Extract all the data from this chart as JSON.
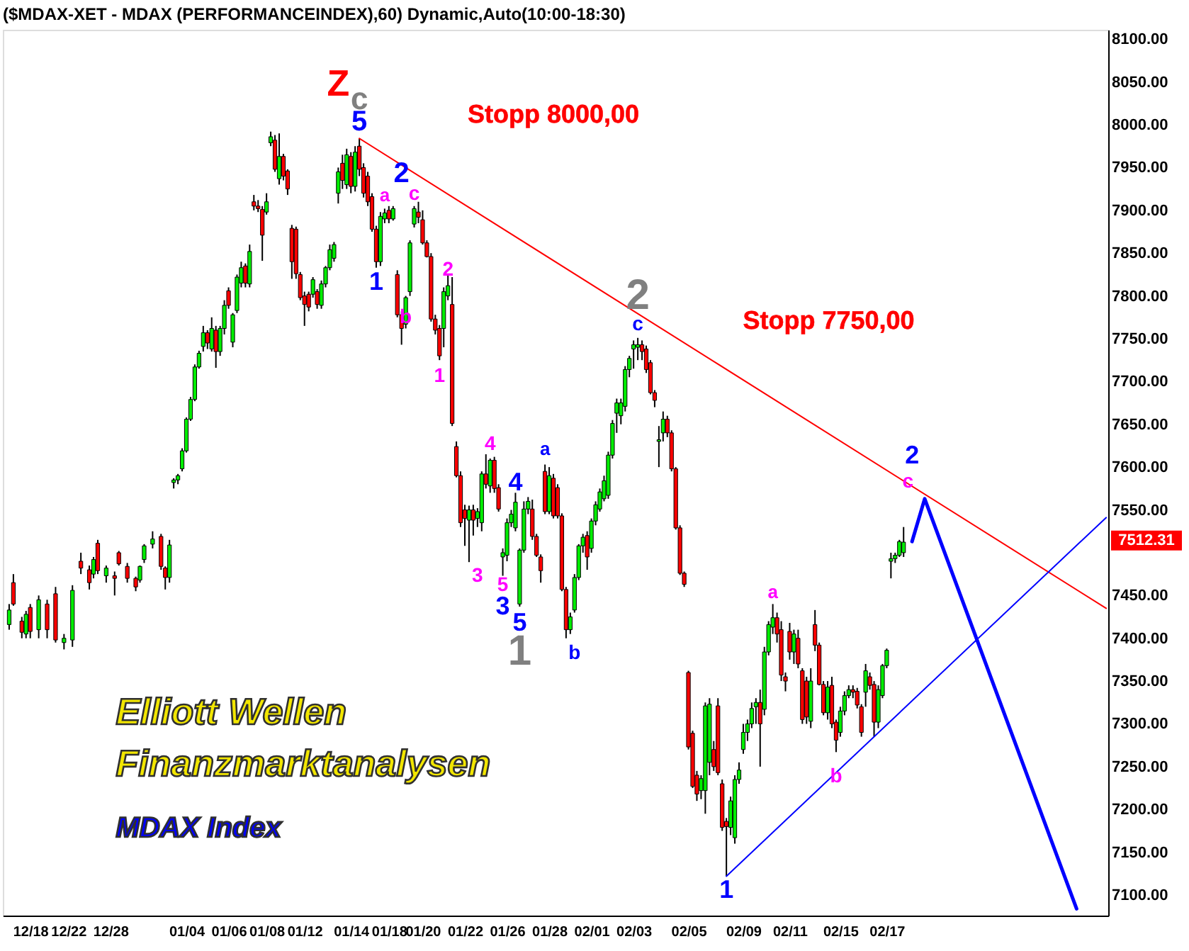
{
  "chart_data": {
    "type": "candlestick",
    "title": "($MDAX-XET - MDAX (PERFORMANCEINDEX),60) Dynamic,Auto(10:00-18:30)",
    "categories": [
      null,
      null,
      null,
      null,
      null,
      null,
      "12/18",
      null,
      null,
      null,
      null,
      null,
      null,
      null,
      null,
      "12/22",
      null,
      null,
      null,
      null,
      null,
      null,
      null,
      null,
      null,
      "12/28",
      null,
      null,
      null,
      null,
      null,
      null,
      null,
      null,
      null,
      null,
      null,
      null,
      null,
      null,
      null,
      null,
      null,
      "01/04",
      null,
      null,
      null,
      null,
      null,
      null,
      null,
      null,
      null,
      "01/06",
      null,
      null,
      null,
      null,
      null,
      null,
      null,
      null,
      "01/08",
      null,
      null,
      null,
      null,
      null,
      null,
      null,
      null,
      "01/12",
      null,
      null,
      null,
      null,
      null,
      null,
      null,
      null,
      null,
      null,
      "01/14",
      null,
      null,
      null,
      null,
      null,
      null,
      null,
      null,
      "01/18",
      null,
      null,
      null,
      null,
      null,
      null,
      null,
      "01/20",
      null,
      null,
      null,
      null,
      null,
      null,
      null,
      null,
      null,
      "01/22",
      null,
      null,
      null,
      null,
      null,
      null,
      null,
      null,
      null,
      "01/26",
      null,
      null,
      null,
      null,
      null,
      null,
      null,
      null,
      null,
      "01/28",
      null,
      null,
      null,
      null,
      null,
      null,
      null,
      null,
      null,
      "02/01",
      null,
      null,
      null,
      null,
      null,
      null,
      null,
      null,
      null,
      "02/03",
      null,
      null,
      null,
      null,
      null,
      null,
      null,
      null,
      null,
      null,
      null,
      null,
      "02/05",
      null,
      null,
      null,
      null,
      null,
      null,
      null,
      null,
      null,
      null,
      null,
      null,
      "02/09",
      null,
      null,
      null,
      null,
      null,
      null,
      null,
      null,
      null,
      null,
      "02/11",
      null,
      null,
      null,
      null,
      null,
      null,
      null,
      null,
      null,
      null,
      null,
      "02/15",
      null,
      null,
      null,
      null,
      null,
      null,
      null,
      null,
      null,
      null,
      "02/17",
      null,
      null,
      null,
      null,
      null,
      null,
      null,
      null,
      null,
      null,
      null,
      null,
      null,
      null,
      null,
      null,
      null,
      null,
      null,
      null,
      null,
      null,
      null,
      null,
      null,
      null,
      null,
      null,
      null,
      null,
      null,
      null,
      null,
      null,
      null,
      null,
      null,
      null,
      null,
      null,
      null,
      null,
      null,
      null,
      null,
      null,
      null,
      null,
      null,
      null,
      null,
      null
    ],
    "ohlc": [
      null,
      [
        7416,
        7440,
        7410,
        7433
      ],
      [
        7465,
        7475,
        7438,
        7440
      ],
      null,
      [
        7420,
        7425,
        7400,
        7407
      ],
      [
        7405,
        7432,
        7400,
        7428
      ],
      [
        7436,
        7440,
        7400,
        7408
      ],
      null,
      [
        7410,
        7450,
        7400,
        7445
      ],
      null,
      [
        7440,
        7445,
        7400,
        7410
      ],
      null,
      [
        7452,
        7460,
        7395,
        7398
      ],
      null,
      [
        7395,
        7405,
        7387,
        7400
      ],
      null,
      [
        7398,
        7462,
        7390,
        7456
      ],
      null,
      [
        7490,
        7500,
        7475,
        7482
      ],
      null,
      [
        7480,
        7485,
        7457,
        7465
      ],
      [
        7475,
        7495,
        7470,
        7492
      ],
      [
        7511,
        7515,
        7475,
        7479
      ],
      null,
      [
        7473,
        7485,
        7465,
        7482
      ],
      null,
      [
        7473,
        7478,
        7450,
        7470
      ],
      [
        7500,
        7502,
        7485,
        7487
      ],
      null,
      [
        7484,
        7488,
        7465,
        7470
      ],
      null,
      [
        7470,
        7472,
        7455,
        7460
      ],
      [
        7468,
        7485,
        7465,
        7484
      ],
      [
        7492,
        7510,
        7488,
        7508
      ],
      null,
      [
        7510,
        7525,
        7505,
        7516
      ],
      null,
      [
        7519,
        7522,
        7480,
        7484
      ],
      [
        7482,
        7484,
        7457,
        7471
      ],
      [
        7471,
        7515,
        7465,
        7509
      ],
      [
        7582,
        7587,
        7575,
        7585
      ],
      [
        7585,
        7592,
        7580,
        7590
      ],
      [
        7598,
        7622,
        7595,
        7619
      ],
      [
        7619,
        7658,
        7617,
        7656
      ],
      [
        7656,
        7682,
        7654,
        7679
      ],
      [
        7679,
        7720,
        7677,
        7717
      ],
      [
        7717,
        7736,
        7715,
        7733
      ],
      [
        7741,
        7765,
        7735,
        7757
      ],
      [
        7757,
        7760,
        7738,
        7745
      ],
      [
        7738,
        7775,
        7735,
        7762
      ],
      [
        7760,
        7765,
        7716,
        7735
      ],
      [
        7735,
        7765,
        7730,
        7762
      ],
      [
        7762,
        7795,
        7755,
        7789
      ],
      [
        7806,
        7810,
        7785,
        7789
      ],
      [
        7746,
        7780,
        7740,
        7778
      ],
      [
        7783,
        7825,
        7780,
        7822
      ],
      [
        7815,
        7840,
        7810,
        7833
      ],
      [
        7835,
        7838,
        7810,
        7815
      ],
      [
        7814,
        7860,
        7810,
        7852
      ],
      [
        7910,
        7918,
        7900,
        7905
      ],
      [
        7905,
        7912,
        7898,
        7902
      ],
      [
        7901,
        7905,
        7841,
        7871
      ],
      [
        7898,
        7920,
        7895,
        7910
      ],
      [
        7979,
        7992,
        7975,
        7986
      ],
      [
        7982,
        7988,
        7945,
        7948
      ],
      [
        7937,
        7990,
        7930,
        7963
      ],
      [
        7963,
        7966,
        7935,
        7940
      ],
      [
        7946,
        7948,
        7918,
        7925
      ],
      [
        7879,
        7883,
        7820,
        7840
      ],
      [
        7878,
        7881,
        7820,
        7826
      ],
      [
        7825,
        7828,
        7795,
        7798
      ],
      [
        7800,
        7805,
        7765,
        7790
      ],
      [
        7802,
        7805,
        7782,
        7787
      ],
      [
        7802,
        7822,
        7798,
        7819
      ],
      [
        7805,
        7808,
        7785,
        7790
      ],
      [
        7789,
        7818,
        7785,
        7814
      ],
      [
        7814,
        7835,
        7810,
        7833
      ],
      [
        7833,
        7860,
        7830,
        7854
      ],
      [
        7844,
        7863,
        7840,
        7860
      ],
      [
        7920,
        7950,
        7908,
        7945
      ],
      [
        7955,
        7965,
        7925,
        7935
      ],
      [
        7930,
        7972,
        7925,
        7965
      ],
      [
        7963,
        7968,
        7920,
        7928
      ],
      [
        7928,
        7975,
        7922,
        7968
      ],
      [
        7975,
        7984,
        7940,
        7948
      ],
      [
        7950,
        7955,
        7915,
        7920
      ],
      [
        7940,
        7945,
        7905,
        7910
      ],
      [
        7916,
        7920,
        7875,
        7878
      ],
      [
        7878,
        7882,
        7833,
        7840
      ],
      [
        7840,
        7898,
        7835,
        7893
      ],
      [
        7890,
        7902,
        7885,
        7897
      ],
      [
        7900,
        7905,
        7885,
        7890
      ],
      [
        7890,
        7905,
        7888,
        7902
      ],
      [
        7825,
        7830,
        7775,
        7778
      ],
      [
        7778,
        7782,
        7743,
        7762
      ],
      [
        7767,
        7800,
        7762,
        7798
      ],
      [
        7805,
        7865,
        7800,
        7862
      ],
      [
        7884,
        7905,
        7880,
        7902
      ],
      [
        7898,
        7910,
        7885,
        7892
      ],
      [
        7889,
        7900,
        7860,
        7862
      ],
      [
        7862,
        7865,
        7845,
        7846
      ],
      [
        7846,
        7850,
        7770,
        7773
      ],
      [
        7773,
        7778,
        7755,
        7760
      ],
      [
        7762,
        7766,
        7725,
        7730
      ],
      [
        7762,
        7810,
        7740,
        7805
      ],
      [
        7800,
        7825,
        7795,
        7812
      ],
      [
        7790,
        7822,
        7648,
        7651
      ],
      [
        7624,
        7630,
        7588,
        7590
      ],
      [
        7590,
        7595,
        7530,
        7535
      ],
      [
        7550,
        7556,
        7508,
        7540
      ],
      [
        7538,
        7555,
        7489,
        7550
      ],
      [
        7550,
        7556,
        7520,
        7538
      ],
      [
        7540,
        7552,
        7530,
        7548
      ],
      [
        7535,
        7595,
        7525,
        7592
      ],
      [
        7592,
        7615,
        7575,
        7580
      ],
      [
        7578,
        7610,
        7570,
        7608
      ],
      [
        7608,
        7612,
        7570,
        7575
      ],
      [
        7576,
        7580,
        7548,
        7551
      ],
      [
        7495,
        7505,
        7473,
        7500
      ],
      [
        7497,
        7540,
        7490,
        7535
      ],
      [
        7535,
        7550,
        7530,
        7545
      ],
      [
        7529,
        7570,
        7525,
        7559
      ],
      [
        7440,
        7505,
        7437,
        7503
      ],
      [
        7503,
        7560,
        7500,
        7551
      ],
      [
        7551,
        7565,
        7545,
        7560
      ],
      [
        7551,
        7562,
        7515,
        7519
      ],
      [
        7519,
        7522,
        7495,
        7497
      ],
      [
        7495,
        7498,
        7465,
        7479
      ],
      [
        7595,
        7603,
        7545,
        7548
      ],
      [
        7548,
        7600,
        7545,
        7590
      ],
      [
        7587,
        7592,
        7540,
        7543
      ],
      [
        7576,
        7580,
        7540,
        7543
      ],
      [
        7543,
        7546,
        7455,
        7457
      ],
      [
        7457,
        7460,
        7400,
        7410
      ],
      [
        7410,
        7430,
        7405,
        7425
      ],
      [
        7433,
        7475,
        7430,
        7471
      ],
      [
        7471,
        7510,
        7468,
        7508
      ],
      [
        7508,
        7522,
        7500,
        7518
      ],
      [
        7520,
        7525,
        7480,
        7495
      ],
      [
        7505,
        7540,
        7500,
        7537
      ],
      [
        7537,
        7560,
        7532,
        7556
      ],
      [
        7551,
        7575,
        7548,
        7571
      ],
      [
        7563,
        7590,
        7560,
        7584
      ],
      [
        7567,
        7618,
        7563,
        7614
      ],
      [
        7614,
        7655,
        7610,
        7651
      ],
      [
        7663,
        7680,
        7640,
        7675
      ],
      [
        7660,
        7680,
        7650,
        7675
      ],
      [
        7671,
        7718,
        7665,
        7714
      ],
      [
        7714,
        7730,
        7705,
        7727
      ],
      [
        7738,
        7748,
        7715,
        7743
      ],
      [
        7740,
        7751,
        7725,
        7743
      ],
      [
        7743,
        7748,
        7725,
        7735
      ],
      [
        7738,
        7742,
        7710,
        7714
      ],
      [
        7722,
        7725,
        7685,
        7687
      ],
      [
        7687,
        7690,
        7670,
        7678
      ],
      [
        7630,
        7648,
        7600,
        7632
      ],
      [
        7640,
        7665,
        7630,
        7656
      ],
      [
        7656,
        7660,
        7635,
        7640
      ],
      [
        7640,
        7643,
        7595,
        7598
      ],
      [
        7598,
        7600,
        7527,
        7529
      ],
      [
        7529,
        7532,
        7474,
        7476
      ],
      [
        7476,
        7478,
        7460,
        7463
      ],
      [
        7360,
        7362,
        7270,
        7273
      ],
      [
        7289,
        7292,
        7225,
        7227
      ],
      [
        7240,
        7245,
        7210,
        7218
      ],
      [
        7222,
        7240,
        7212,
        7236
      ],
      [
        7222,
        7325,
        7195,
        7321
      ],
      [
        7255,
        7330,
        7240,
        7323
      ],
      [
        7270,
        7280,
        7245,
        7250
      ],
      [
        7321,
        7330,
        7240,
        7243
      ],
      [
        7230,
        7235,
        7175,
        7179
      ],
      [
        7186,
        7190,
        7122,
        7180
      ],
      [
        7179,
        7215,
        7170,
        7210
      ],
      [
        7167,
        7240,
        7160,
        7235
      ],
      [
        7235,
        7255,
        7230,
        7246
      ],
      [
        7270,
        7300,
        7265,
        7290
      ],
      [
        7290,
        7305,
        7280,
        7300
      ],
      [
        7300,
        7325,
        7295,
        7318
      ],
      [
        7320,
        7330,
        7300,
        7325
      ],
      [
        7325,
        7340,
        7250,
        7300
      ],
      [
        7317,
        7390,
        7310,
        7384
      ],
      [
        7384,
        7420,
        7380,
        7416
      ],
      [
        7413,
        7440,
        7405,
        7424
      ],
      [
        7424,
        7430,
        7395,
        7405
      ],
      [
        7410,
        7420,
        7350,
        7357
      ],
      [
        7355,
        7360,
        7338,
        7350
      ],
      [
        7408,
        7418,
        7375,
        7384
      ],
      [
        7384,
        7410,
        7370,
        7405
      ],
      [
        7400,
        7410,
        7365,
        7370
      ],
      [
        7362,
        7365,
        7300,
        7305
      ],
      [
        7350,
        7355,
        7300,
        7308
      ],
      [
        7303,
        7365,
        7295,
        7350
      ],
      [
        7416,
        7433,
        7385,
        7392
      ],
      [
        7392,
        7395,
        7345,
        7346
      ],
      [
        7346,
        7350,
        7310,
        7313
      ],
      [
        7313,
        7350,
        7305,
        7343
      ],
      [
        7345,
        7355,
        7295,
        7300
      ],
      [
        7302,
        7305,
        7267,
        7281
      ],
      [
        7290,
        7320,
        7285,
        7315
      ],
      [
        7315,
        7338,
        7310,
        7333
      ],
      [
        7333,
        7345,
        7330,
        7340
      ],
      [
        7340,
        7345,
        7330,
        7337
      ],
      [
        7338,
        7342,
        7318,
        7322
      ],
      [
        7320,
        7323,
        7285,
        7290
      ],
      [
        7337,
        7370,
        7320,
        7362
      ],
      [
        7355,
        7360,
        7340,
        7345
      ],
      [
        7346,
        7350,
        7285,
        7302
      ],
      [
        7302,
        7345,
        7295,
        7340
      ],
      [
        7333,
        7370,
        7330,
        7368
      ],
      [
        7368,
        7388,
        7365,
        7386
      ],
      [
        7490,
        7500,
        7470,
        7493
      ],
      [
        7493,
        7500,
        7488,
        7497
      ],
      [
        7497,
        7515,
        7495,
        7513
      ],
      [
        7500,
        7530,
        7495,
        7512.31
      ],
      null,
      null,
      null,
      null,
      null,
      null,
      null,
      null,
      null,
      null,
      null,
      null,
      null,
      null,
      null,
      null,
      null,
      null,
      null,
      null,
      null,
      null,
      null,
      null,
      null,
      null,
      null,
      null,
      null,
      null,
      null,
      null,
      null,
      null,
      null,
      null,
      null,
      null,
      null,
      null,
      null,
      null,
      null,
      null,
      null,
      null,
      null,
      null
    ],
    "series": [
      {
        "type": "line",
        "color": "#ff0000",
        "values": [
          null,
          null,
          null,
          null,
          null,
          null,
          null,
          null,
          null,
          null,
          null,
          null,
          null,
          null,
          null,
          null,
          null,
          null,
          null,
          null,
          null,
          null,
          null,
          null,
          null,
          null,
          null,
          null,
          null,
          null,
          null,
          null,
          null,
          null,
          null,
          null,
          null,
          null,
          null,
          null,
          null,
          null,
          null,
          null,
          null,
          null,
          null,
          null,
          null,
          null,
          null,
          null,
          null,
          null,
          null,
          null,
          null,
          null,
          null,
          null,
          null,
          null,
          null,
          null,
          null,
          null,
          null,
          null,
          null,
          null,
          null,
          null,
          null,
          null,
          null,
          null,
          null,
          null,
          null,
          null,
          null,
          null,
          null,
          null,
          7984,
          null,
          null,
          null,
          null,
          null,
          null,
          null,
          null,
          null,
          null,
          null,
          null,
          null,
          null,
          null,
          null,
          null,
          null,
          null,
          null,
          null,
          null,
          null,
          null,
          null,
          null,
          null,
          null,
          null,
          null,
          null,
          null,
          null,
          null,
          null,
          null,
          null,
          null,
          null,
          null,
          null,
          null,
          null,
          null,
          null,
          null,
          null,
          null,
          null,
          null,
          null,
          null,
          null,
          null,
          null,
          null,
          null,
          null,
          null,
          null,
          null,
          null,
          null,
          null,
          null,
          null,
          null,
          null,
          null,
          null,
          null,
          null,
          null,
          null,
          null,
          null,
          null,
          null,
          null,
          null,
          null,
          null,
          null,
          null,
          null,
          null,
          null,
          null,
          null,
          null,
          null,
          null,
          null,
          null,
          null,
          null,
          null,
          null,
          null,
          null,
          null,
          null,
          null,
          null,
          null,
          null,
          null,
          null,
          null,
          null,
          null,
          null,
          null,
          null,
          null,
          null,
          null,
          null,
          null,
          null,
          null,
          null,
          null,
          null,
          null,
          null,
          null,
          null,
          null,
          null,
          null,
          null,
          null,
          null,
          null,
          null,
          null,
          null,
          null,
          null,
          null,
          null,
          null,
          null,
          null,
          null,
          null,
          null,
          null,
          null,
          null,
          null,
          null,
          null,
          null,
          null,
          null,
          null,
          null,
          null,
          null,
          null,
          null,
          null,
          null,
          null,
          null,
          null,
          null,
          null,
          null,
          null,
          null,
          null,
          null,
          null,
          7435
        ]
      },
      {
        "type": "line",
        "color": "#0000ff",
        "values": [
          null,
          null,
          null,
          null,
          null,
          null,
          null,
          null,
          null,
          null,
          null,
          null,
          null,
          null,
          null,
          null,
          null,
          null,
          null,
          null,
          null,
          null,
          null,
          null,
          null,
          null,
          null,
          null,
          null,
          null,
          null,
          null,
          null,
          null,
          null,
          null,
          null,
          null,
          null,
          null,
          null,
          null,
          null,
          null,
          null,
          null,
          null,
          null,
          null,
          null,
          null,
          null,
          null,
          null,
          null,
          null,
          null,
          null,
          null,
          null,
          null,
          null,
          null,
          null,
          null,
          null,
          null,
          null,
          null,
          null,
          null,
          null,
          null,
          null,
          null,
          null,
          null,
          null,
          null,
          null,
          null,
          null,
          null,
          null,
          null,
          null,
          null,
          null,
          null,
          null,
          null,
          null,
          null,
          null,
          null,
          null,
          null,
          null,
          null,
          null,
          null,
          null,
          null,
          null,
          null,
          null,
          null,
          null,
          null,
          null,
          null,
          null,
          null,
          null,
          null,
          null,
          null,
          null,
          null,
          null,
          null,
          null,
          null,
          null,
          null,
          null,
          null,
          null,
          null,
          null,
          null,
          null,
          null,
          null,
          null,
          null,
          null,
          null,
          null,
          null,
          null,
          null,
          null,
          null,
          null,
          null,
          null,
          null,
          null,
          null,
          null,
          null,
          null,
          null,
          null,
          null,
          null,
          null,
          null,
          null,
          null,
          null,
          null,
          null,
          null,
          null,
          null,
          null,
          null,
          null,
          null,
          7122,
          null,
          null,
          null,
          null,
          null,
          null,
          null,
          null,
          null,
          null,
          null,
          null,
          null,
          null,
          null,
          null,
          null,
          null,
          null,
          null,
          null,
          null,
          null,
          null,
          null,
          null,
          null,
          null,
          null,
          null,
          null,
          null,
          null,
          null,
          null,
          null,
          null,
          null,
          null,
          null,
          null,
          null,
          null,
          null,
          null,
          null,
          null,
          null,
          null,
          null,
          null,
          null,
          null,
          null,
          null,
          null,
          null,
          null,
          null,
          null,
          null,
          null,
          null,
          null,
          null,
          null,
          null,
          null,
          null,
          null,
          null,
          null,
          null,
          null,
          null,
          null,
          null,
          null,
          null,
          null,
          null,
          null,
          null,
          null,
          null,
          null,
          null,
          null,
          null,
          7541
        ]
      },
      {
        "type": "line",
        "color": "#0000ff",
        "values": [
          null,
          null,
          null,
          null,
          null,
          null,
          null,
          null,
          null,
          null,
          null,
          null,
          null,
          null,
          null,
          null,
          null,
          null,
          null,
          null,
          null,
          null,
          null,
          null,
          null,
          null,
          null,
          null,
          null,
          null,
          null,
          null,
          null,
          null,
          null,
          null,
          null,
          null,
          null,
          null,
          null,
          null,
          null,
          null,
          null,
          null,
          null,
          null,
          null,
          null,
          null,
          null,
          null,
          null,
          null,
          null,
          null,
          null,
          null,
          null,
          null,
          null,
          null,
          null,
          null,
          null,
          null,
          null,
          null,
          null,
          null,
          null,
          null,
          null,
          null,
          null,
          null,
          null,
          null,
          null,
          null,
          null,
          null,
          null,
          null,
          null,
          null,
          null,
          null,
          null,
          null,
          null,
          null,
          null,
          null,
          null,
          null,
          null,
          null,
          null,
          null,
          null,
          null,
          null,
          null,
          null,
          null,
          null,
          null,
          null,
          null,
          null,
          null,
          null,
          null,
          null,
          null,
          null,
          null,
          null,
          null,
          null,
          null,
          null,
          null,
          null,
          null,
          null,
          null,
          null,
          null,
          null,
          null,
          null,
          null,
          null,
          null,
          null,
          null,
          null,
          null,
          null,
          null,
          null,
          null,
          null,
          null,
          null,
          null,
          null,
          null,
          null,
          null,
          null,
          null,
          null,
          null,
          null,
          null,
          null,
          null,
          null,
          null,
          null,
          null,
          null,
          null,
          null,
          null,
          null,
          null,
          null,
          null,
          null,
          null,
          null,
          null,
          null,
          null,
          null,
          null,
          null,
          null,
          null,
          null,
          null,
          null,
          null,
          null,
          null,
          null,
          null,
          null,
          null,
          null,
          null,
          null,
          null,
          null,
          null,
          null,
          null,
          null,
          null,
          null,
          null,
          null,
          null,
          null,
          null,
          null,
          null,
          null,
          null,
          null,
          7513,
          null,
          null,
          7563,
          null,
          null,
          null,
          null,
          null,
          null,
          null,
          null,
          null,
          null,
          null,
          null,
          null,
          null,
          null,
          null,
          null,
          null,
          null,
          null,
          null,
          null,
          null,
          null,
          null,
          null,
          null,
          null,
          null,
          null,
          null,
          null,
          null,
          null,
          null,
          7084,
          null,
          null,
          null,
          null,
          null,
          null,
          null
        ]
      }
    ],
    "ylim": [
      7076,
      8111
    ],
    "yticks": [
      {
        "value": 7100,
        "label": "7100.00"
      },
      {
        "value": 7150,
        "label": "7150.00"
      },
      {
        "value": 7200,
        "label": "7200.00"
      },
      {
        "value": 7250,
        "label": "7250.00"
      },
      {
        "value": 7300,
        "label": "7300.00"
      },
      {
        "value": 7350,
        "label": "7350.00"
      },
      {
        "value": 7400,
        "label": "7400.00"
      },
      {
        "value": 7450,
        "label": "7450.00"
      },
      {
        "value": 7550,
        "label": "7550.00"
      },
      {
        "value": 7600,
        "label": "7600.00"
      },
      {
        "value": 7650,
        "label": "7650.00"
      },
      {
        "value": 7700,
        "label": "7700.00"
      },
      {
        "value": 7750,
        "label": "7750.00"
      },
      {
        "value": 7800,
        "label": "7800.00"
      },
      {
        "value": 7850,
        "label": "7850.00"
      },
      {
        "value": 7900,
        "label": "7900.00"
      },
      {
        "value": 7950,
        "label": "7950.00"
      },
      {
        "value": 8000,
        "label": "8000.00"
      },
      {
        "value": 8050,
        "label": "8050.00"
      },
      {
        "value": 8100,
        "label": "8100.00"
      }
    ],
    "grid": false,
    "legend": false,
    "annotations": [
      "Z",
      "c",
      "5",
      "a",
      "2",
      "c",
      "1",
      "b",
      "2",
      "1",
      "4",
      "3",
      "4",
      "5",
      "3",
      "5",
      "1",
      "a",
      "b",
      "2",
      "c",
      "a",
      "b",
      "1",
      "2",
      "c",
      "Stopp 8000,00",
      "Stopp 7750,00",
      "Elliott Wellen",
      "Finanzmarktanalysen",
      "MDAX Index",
      "7512.31"
    ]
  }
}
